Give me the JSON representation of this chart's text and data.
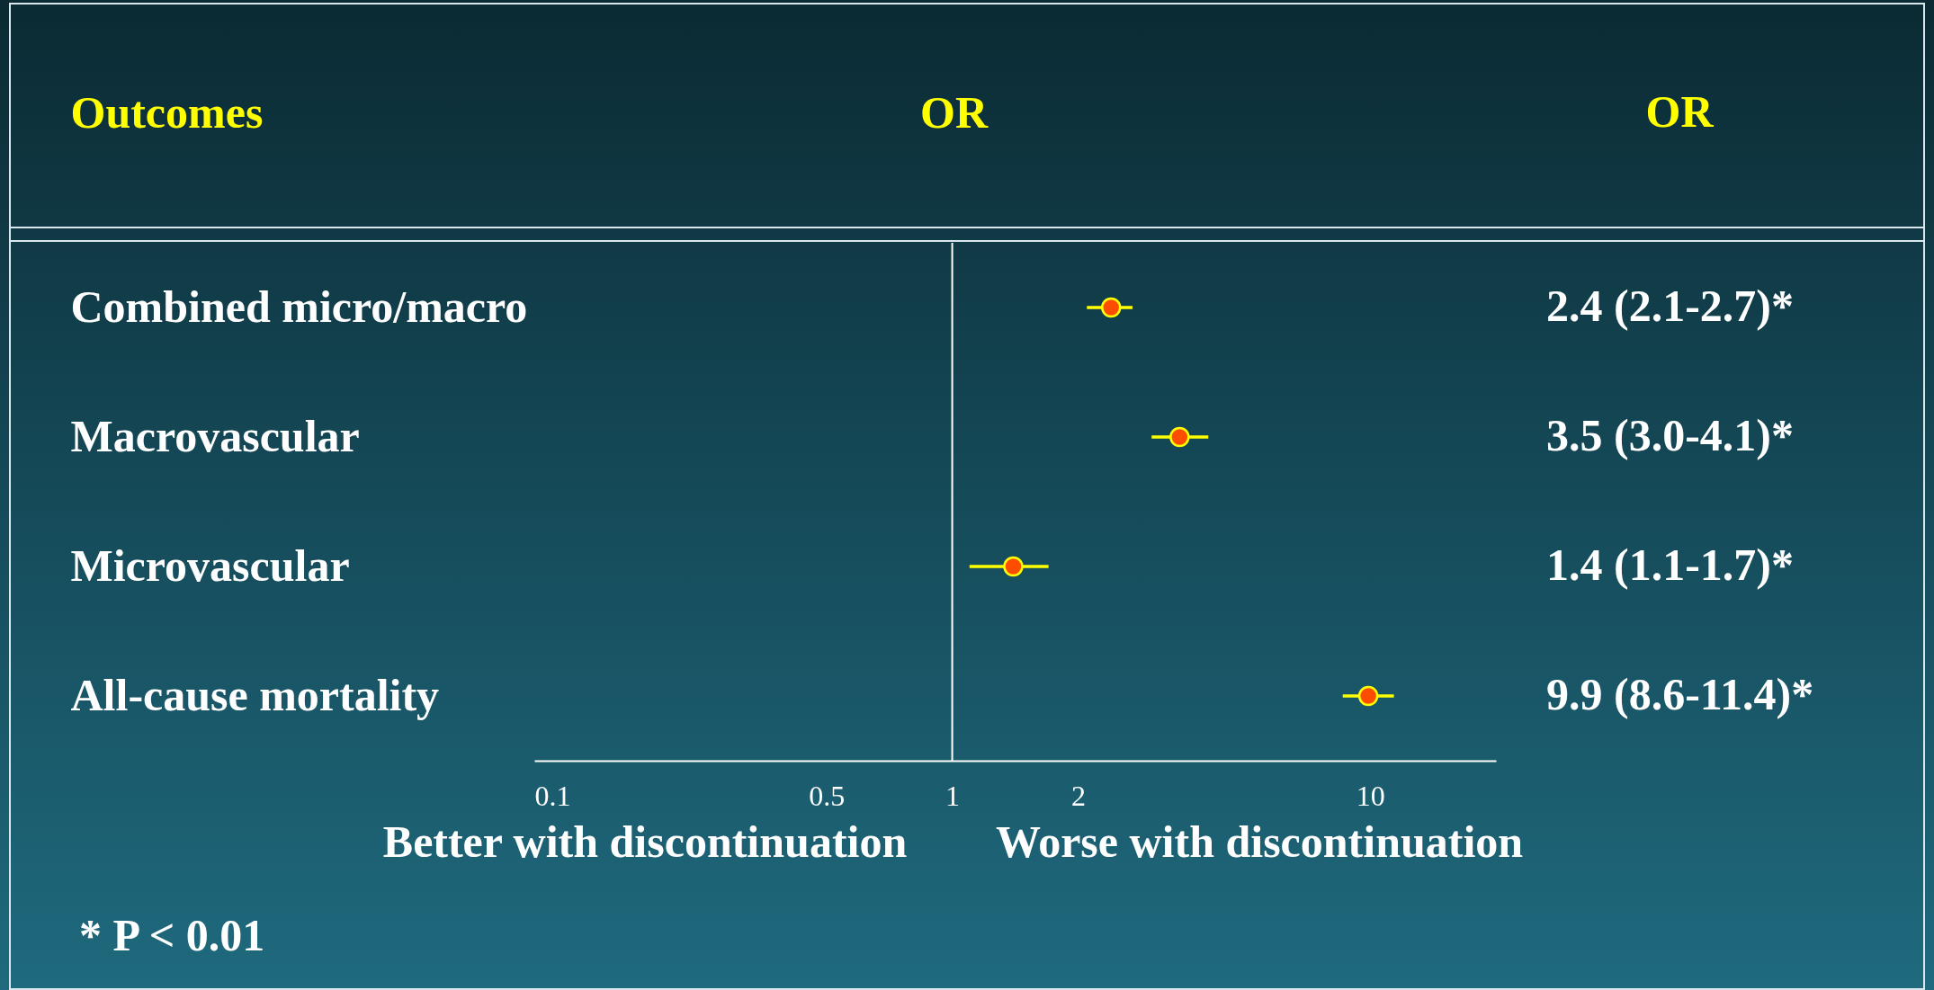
{
  "chart_data": {
    "type": "scatter",
    "orientation": "horizontal",
    "log": "x",
    "ylabel": "Outcomes",
    "xlabel": "OR",
    "categories": [
      "Combined micro/macro",
      "Macrovascular",
      "Microvascular",
      "All-cause mortality"
    ],
    "series": [
      {
        "color": "#ff4d00",
        "values": [
          2.4,
          3.5,
          1.4,
          9.9
        ],
        "errors": [
          [
            2.1,
            2.7
          ],
          [
            3.0,
            4.1
          ],
          [
            1.1,
            1.7
          ],
          [
            8.6,
            11.4
          ]
        ]
      }
    ],
    "xlim": [
      0.1,
      20
    ],
    "xticks": [
      0.1,
      0.5,
      1,
      2,
      10
    ],
    "ref_lines": [
      {
        "axis": "x",
        "value": 1,
        "color": "#ffffff"
      }
    ],
    "marker": "circle",
    "grid": false,
    "annotations": [
      "OR",
      "2.4 (2.1-2.7)*",
      "3.5 (3.0-4.1)*",
      "1.4 (1.1-1.7)*",
      "9.9 (8.6-11.4)*",
      "Better with discontinuation",
      "Worse with discontinuation",
      "* P < 0.01"
    ]
  }
}
